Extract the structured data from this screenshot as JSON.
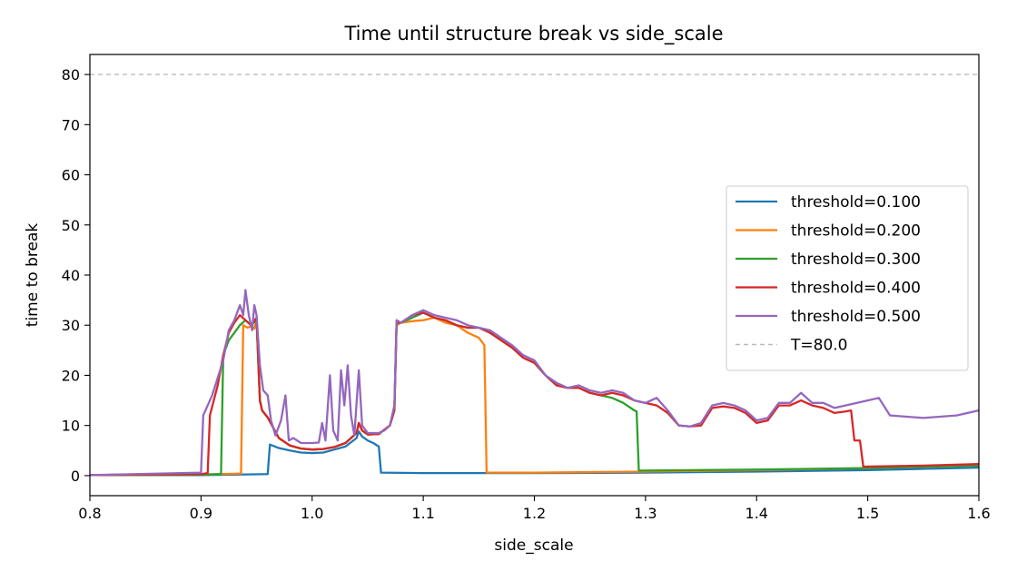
{
  "chart_data": {
    "type": "line",
    "title": "Time until structure break vs side_scale",
    "xlabel": "side_scale",
    "ylabel": "time to break",
    "xlim": [
      0.8,
      1.6
    ],
    "ylim": [
      -4,
      84
    ],
    "xticks": [
      "0.8",
      "0.9",
      "1.0",
      "1.1",
      "1.2",
      "1.3",
      "1.4",
      "1.5",
      "1.6"
    ],
    "yticks": [
      "0",
      "10",
      "20",
      "30",
      "40",
      "50",
      "60",
      "70",
      "80"
    ],
    "legend_position": "center-right",
    "grid": false,
    "reference_line": {
      "name": "T=80.0",
      "y": 80,
      "color": "#bbbbbb",
      "style": "dashed"
    },
    "series": [
      {
        "name": "threshold=0.100",
        "color": "#1f77b4",
        "points": [
          [
            0.8,
            0.1
          ],
          [
            0.9,
            0.1
          ],
          [
            0.96,
            0.3
          ],
          [
            0.962,
            6.2
          ],
          [
            0.97,
            5.5
          ],
          [
            0.98,
            5.0
          ],
          [
            0.99,
            4.6
          ],
          [
            1.0,
            4.5
          ],
          [
            1.01,
            4.6
          ],
          [
            1.02,
            5.2
          ],
          [
            1.03,
            5.8
          ],
          [
            1.04,
            7.5
          ],
          [
            1.042,
            8.8
          ],
          [
            1.045,
            7.8
          ],
          [
            1.05,
            7.0
          ],
          [
            1.055,
            6.5
          ],
          [
            1.06,
            5.8
          ],
          [
            1.062,
            0.6
          ],
          [
            1.1,
            0.5
          ],
          [
            1.2,
            0.5
          ],
          [
            1.3,
            0.6
          ],
          [
            1.4,
            0.8
          ],
          [
            1.5,
            1.1
          ],
          [
            1.6,
            1.6
          ]
        ]
      },
      {
        "name": "threshold=0.200",
        "color": "#ff7f0e",
        "points": [
          [
            0.8,
            0.1
          ],
          [
            0.9,
            0.2
          ],
          [
            0.936,
            0.4
          ],
          [
            0.938,
            30
          ],
          [
            0.942,
            29.5
          ],
          [
            0.945,
            29.8
          ],
          [
            0.948,
            29.3
          ],
          [
            0.95,
            31
          ],
          [
            0.953,
            15
          ],
          [
            0.955,
            13
          ],
          [
            0.96,
            11.6
          ],
          [
            0.97,
            7.5
          ],
          [
            0.98,
            6
          ],
          [
            0.99,
            5.4
          ],
          [
            1.0,
            5.2
          ],
          [
            1.01,
            5.3
          ],
          [
            1.02,
            5.7
          ],
          [
            1.03,
            6.5
          ],
          [
            1.04,
            8.5
          ],
          [
            1.042,
            10.5
          ],
          [
            1.045,
            9
          ],
          [
            1.05,
            8.2
          ],
          [
            1.06,
            8.3
          ],
          [
            1.07,
            10
          ],
          [
            1.074,
            13
          ],
          [
            1.076,
            30
          ],
          [
            1.08,
            30.5
          ],
          [
            1.09,
            30.8
          ],
          [
            1.1,
            31
          ],
          [
            1.11,
            31.5
          ],
          [
            1.12,
            30.5
          ],
          [
            1.13,
            30
          ],
          [
            1.14,
            28.5
          ],
          [
            1.15,
            27.5
          ],
          [
            1.155,
            26
          ],
          [
            1.157,
            0.6
          ],
          [
            1.2,
            0.6
          ],
          [
            1.3,
            0.8
          ],
          [
            1.4,
            1.1
          ],
          [
            1.5,
            1.5
          ],
          [
            1.6,
            2.0
          ]
        ]
      },
      {
        "name": "threshold=0.300",
        "color": "#2ca02c",
        "points": [
          [
            0.8,
            0.1
          ],
          [
            0.9,
            0.2
          ],
          [
            0.918,
            0.3
          ],
          [
            0.92,
            24
          ],
          [
            0.925,
            27
          ],
          [
            0.93,
            28.5
          ],
          [
            0.935,
            30
          ],
          [
            0.94,
            31
          ],
          [
            0.945,
            30
          ],
          [
            0.95,
            31
          ],
          [
            0.953,
            15
          ],
          [
            0.955,
            13
          ],
          [
            0.96,
            11.6
          ],
          [
            0.97,
            7.5
          ],
          [
            0.98,
            6
          ],
          [
            0.99,
            5.4
          ],
          [
            1.0,
            5.2
          ],
          [
            1.01,
            5.3
          ],
          [
            1.02,
            5.7
          ],
          [
            1.03,
            6.5
          ],
          [
            1.04,
            8.5
          ],
          [
            1.042,
            10.5
          ],
          [
            1.045,
            9
          ],
          [
            1.05,
            8.2
          ],
          [
            1.06,
            8.3
          ],
          [
            1.07,
            10
          ],
          [
            1.074,
            13
          ],
          [
            1.076,
            30.5
          ],
          [
            1.08,
            30.5
          ],
          [
            1.09,
            31.5
          ],
          [
            1.1,
            32.5
          ],
          [
            1.11,
            31.5
          ],
          [
            1.12,
            31
          ],
          [
            1.13,
            30
          ],
          [
            1.14,
            29.5
          ],
          [
            1.15,
            29.5
          ],
          [
            1.16,
            28.5
          ],
          [
            1.17,
            27
          ],
          [
            1.18,
            25.5
          ],
          [
            1.19,
            23.5
          ],
          [
            1.2,
            22.5
          ],
          [
            1.21,
            20
          ],
          [
            1.22,
            18
          ],
          [
            1.23,
            17.5
          ],
          [
            1.24,
            17.5
          ],
          [
            1.25,
            16.5
          ],
          [
            1.26,
            16
          ],
          [
            1.27,
            15.5
          ],
          [
            1.28,
            14.5
          ],
          [
            1.29,
            13
          ],
          [
            1.292,
            12.8
          ],
          [
            1.294,
            1.0
          ],
          [
            1.35,
            1.1
          ],
          [
            1.4,
            1.2
          ],
          [
            1.5,
            1.5
          ],
          [
            1.6,
            2.0
          ]
        ]
      },
      {
        "name": "threshold=0.400",
        "color": "#d62728",
        "points": [
          [
            0.8,
            0.1
          ],
          [
            0.9,
            0.3
          ],
          [
            0.906,
            0.5
          ],
          [
            0.908,
            12
          ],
          [
            0.915,
            18
          ],
          [
            0.92,
            24
          ],
          [
            0.925,
            28.5
          ],
          [
            0.93,
            30.5
          ],
          [
            0.935,
            32
          ],
          [
            0.94,
            31
          ],
          [
            0.945,
            30
          ],
          [
            0.95,
            31.5
          ],
          [
            0.953,
            15
          ],
          [
            0.955,
            13
          ],
          [
            0.96,
            11.6
          ],
          [
            0.97,
            7.5
          ],
          [
            0.98,
            6
          ],
          [
            0.99,
            5.4
          ],
          [
            1.0,
            5.2
          ],
          [
            1.01,
            5.3
          ],
          [
            1.02,
            5.7
          ],
          [
            1.03,
            6.5
          ],
          [
            1.04,
            8.5
          ],
          [
            1.042,
            10.5
          ],
          [
            1.045,
            9
          ],
          [
            1.05,
            8.2
          ],
          [
            1.06,
            8.3
          ],
          [
            1.07,
            10
          ],
          [
            1.074,
            13
          ],
          [
            1.076,
            30.5
          ],
          [
            1.08,
            30.5
          ],
          [
            1.09,
            32
          ],
          [
            1.1,
            32.5
          ],
          [
            1.11,
            31.5
          ],
          [
            1.12,
            31
          ],
          [
            1.13,
            30
          ],
          [
            1.14,
            29.5
          ],
          [
            1.15,
            29.5
          ],
          [
            1.16,
            28.5
          ],
          [
            1.17,
            27
          ],
          [
            1.18,
            25.5
          ],
          [
            1.19,
            23.5
          ],
          [
            1.2,
            22.5
          ],
          [
            1.21,
            20
          ],
          [
            1.22,
            18
          ],
          [
            1.23,
            17.5
          ],
          [
            1.24,
            17.5
          ],
          [
            1.25,
            16.5
          ],
          [
            1.26,
            16
          ],
          [
            1.27,
            16.5
          ],
          [
            1.28,
            16
          ],
          [
            1.29,
            15
          ],
          [
            1.3,
            14.5
          ],
          [
            1.31,
            14
          ],
          [
            1.32,
            12.5
          ],
          [
            1.33,
            10
          ],
          [
            1.34,
            9.8
          ],
          [
            1.35,
            10
          ],
          [
            1.36,
            13.5
          ],
          [
            1.37,
            13.8
          ],
          [
            1.38,
            13.5
          ],
          [
            1.39,
            12.5
          ],
          [
            1.4,
            10.5
          ],
          [
            1.41,
            11
          ],
          [
            1.42,
            14
          ],
          [
            1.43,
            14
          ],
          [
            1.44,
            15
          ],
          [
            1.45,
            14
          ],
          [
            1.46,
            13.5
          ],
          [
            1.47,
            12.5
          ],
          [
            1.48,
            12.8
          ],
          [
            1.485,
            13
          ],
          [
            1.488,
            7
          ],
          [
            1.493,
            7
          ],
          [
            1.496,
            1.8
          ],
          [
            1.55,
            2.0
          ],
          [
            1.6,
            2.3
          ]
        ]
      },
      {
        "name": "threshold=0.500",
        "color": "#9467bd",
        "points": [
          [
            0.8,
            0.1
          ],
          [
            0.9,
            0.6
          ],
          [
            0.902,
            12
          ],
          [
            0.91,
            16
          ],
          [
            0.92,
            23
          ],
          [
            0.925,
            29
          ],
          [
            0.93,
            31
          ],
          [
            0.935,
            34
          ],
          [
            0.938,
            32
          ],
          [
            0.94,
            37
          ],
          [
            0.943,
            32
          ],
          [
            0.946,
            29
          ],
          [
            0.948,
            34
          ],
          [
            0.95,
            32
          ],
          [
            0.953,
            22
          ],
          [
            0.956,
            17
          ],
          [
            0.96,
            16
          ],
          [
            0.963,
            11
          ],
          [
            0.967,
            8
          ],
          [
            0.972,
            11
          ],
          [
            0.976,
            16
          ],
          [
            0.979,
            7
          ],
          [
            0.983,
            7.5
          ],
          [
            0.99,
            6.5
          ],
          [
            1.0,
            6.5
          ],
          [
            1.006,
            6.6
          ],
          [
            1.009,
            10.5
          ],
          [
            1.012,
            7
          ],
          [
            1.016,
            20
          ],
          [
            1.019,
            9
          ],
          [
            1.023,
            7
          ],
          [
            1.026,
            21
          ],
          [
            1.029,
            14
          ],
          [
            1.032,
            22
          ],
          [
            1.035,
            12
          ],
          [
            1.038,
            8
          ],
          [
            1.042,
            21
          ],
          [
            1.045,
            10
          ],
          [
            1.05,
            8.5
          ],
          [
            1.06,
            8.5
          ],
          [
            1.065,
            9
          ],
          [
            1.07,
            10
          ],
          [
            1.074,
            14
          ],
          [
            1.076,
            31
          ],
          [
            1.08,
            30.5
          ],
          [
            1.09,
            32
          ],
          [
            1.1,
            33
          ],
          [
            1.11,
            32
          ],
          [
            1.12,
            31.5
          ],
          [
            1.13,
            31
          ],
          [
            1.14,
            30
          ],
          [
            1.15,
            29.5
          ],
          [
            1.16,
            29
          ],
          [
            1.17,
            27.5
          ],
          [
            1.18,
            26
          ],
          [
            1.19,
            24
          ],
          [
            1.2,
            23
          ],
          [
            1.21,
            20
          ],
          [
            1.22,
            18.5
          ],
          [
            1.23,
            17.5
          ],
          [
            1.24,
            18
          ],
          [
            1.25,
            17
          ],
          [
            1.26,
            16.5
          ],
          [
            1.27,
            17
          ],
          [
            1.28,
            16.5
          ],
          [
            1.29,
            15
          ],
          [
            1.3,
            14.5
          ],
          [
            1.31,
            15.5
          ],
          [
            1.32,
            13
          ],
          [
            1.33,
            10
          ],
          [
            1.34,
            9.8
          ],
          [
            1.35,
            10.5
          ],
          [
            1.36,
            14
          ],
          [
            1.37,
            14.5
          ],
          [
            1.38,
            14
          ],
          [
            1.39,
            13
          ],
          [
            1.4,
            11
          ],
          [
            1.41,
            11.5
          ],
          [
            1.42,
            14.5
          ],
          [
            1.43,
            14.5
          ],
          [
            1.44,
            16.5
          ],
          [
            1.45,
            14.5
          ],
          [
            1.46,
            14.5
          ],
          [
            1.47,
            13.5
          ],
          [
            1.48,
            14
          ],
          [
            1.49,
            14.5
          ],
          [
            1.5,
            15
          ],
          [
            1.51,
            15.5
          ],
          [
            1.52,
            12
          ],
          [
            1.55,
            11.5
          ],
          [
            1.58,
            12
          ],
          [
            1.6,
            13
          ]
        ]
      }
    ]
  }
}
